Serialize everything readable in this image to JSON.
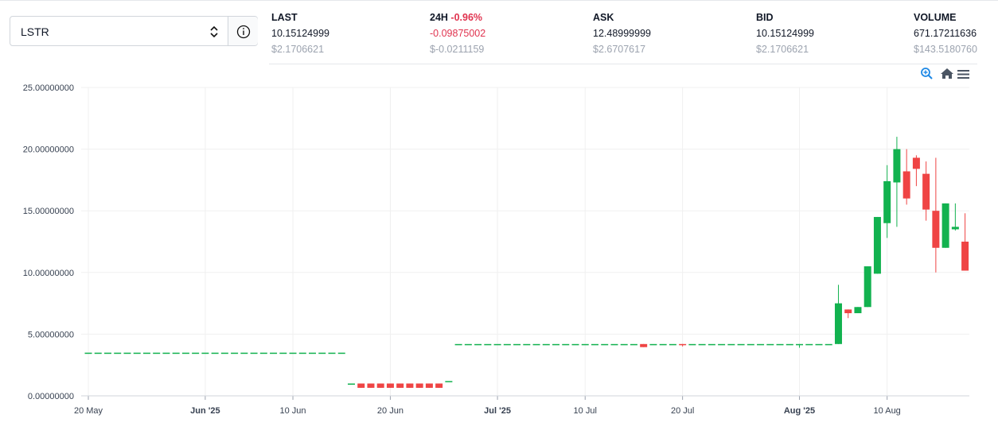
{
  "selector": {
    "value": "LSTR"
  },
  "stats": [
    {
      "label": "LAST",
      "value": "10.15124999",
      "usd": "$2.1706621"
    },
    {
      "label": "24H",
      "change": "-0.96%",
      "value": "-0.09875002",
      "usd": "$-0.0211159"
    },
    {
      "label": "ASK",
      "value": "12.48999999",
      "usd": "$2.6707617"
    },
    {
      "label": "BID",
      "value": "10.15124999",
      "usd": "$2.1706621"
    },
    {
      "label": "VOLUME",
      "value": "671.17211636",
      "usd": "$143.5180760"
    }
  ],
  "chart_data": {
    "type": "candlestick",
    "up_color": "#12b24f",
    "down_color": "#ef4444",
    "grid": true,
    "ylim": [
      0,
      25
    ],
    "yticks": [
      {
        "value": 0,
        "label": "0.00000000"
      },
      {
        "value": 5,
        "label": "5.00000000"
      },
      {
        "value": 10,
        "label": "10.00000000"
      },
      {
        "value": 15,
        "label": "15.00000000"
      },
      {
        "value": 20,
        "label": "20.00000000"
      },
      {
        "value": 25,
        "label": "25.00000000"
      }
    ],
    "xticks": [
      "20 May",
      {
        "value": "1 Jun",
        "label": "Jun '25"
      },
      "10 Jun",
      "20 Jun",
      {
        "value": "1 Jul",
        "label": "Jul '25"
      },
      "10 Jul",
      "20 Jul",
      {
        "value": "1 Aug",
        "label": "Aug '25"
      },
      "10 Aug"
    ],
    "x": [
      "20 May",
      "21 May",
      "22 May",
      "23 May",
      "24 May",
      "25 May",
      "26 May",
      "27 May",
      "28 May",
      "29 May",
      "30 May",
      "31 May",
      "1 Jun",
      "2 Jun",
      "3 Jun",
      "4 Jun",
      "5 Jun",
      "6 Jun",
      "7 Jun",
      "8 Jun",
      "9 Jun",
      "10 Jun",
      "11 Jun",
      "12 Jun",
      "13 Jun",
      "14 Jun",
      "15 Jun",
      "16 Jun",
      "17 Jun",
      "18 Jun",
      "19 Jun",
      "20 Jun",
      "21 Jun",
      "22 Jun",
      "23 Jun",
      "24 Jun",
      "25 Jun",
      "26 Jun",
      "27 Jun",
      "28 Jun",
      "29 Jun",
      "30 Jun",
      "1 Jul",
      "2 Jul",
      "3 Jul",
      "4 Jul",
      "5 Jul",
      "6 Jul",
      "7 Jul",
      "8 Jul",
      "9 Jul",
      "10 Jul",
      "11 Jul",
      "12 Jul",
      "13 Jul",
      "14 Jul",
      "15 Jul",
      "16 Jul",
      "17 Jul",
      "18 Jul",
      "19 Jul",
      "20 Jul",
      "21 Jul",
      "22 Jul",
      "23 Jul",
      "24 Jul",
      "25 Jul",
      "26 Jul",
      "27 Jul",
      "28 Jul",
      "29 Jul",
      "30 Jul",
      "31 Jul",
      "1 Aug",
      "2 Aug",
      "3 Aug",
      "4 Aug",
      "5 Aug",
      "6 Aug",
      "7 Aug",
      "8 Aug",
      "9 Aug",
      "10 Aug",
      "11 Aug",
      "12 Aug",
      "13 Aug",
      "14 Aug",
      "15 Aug",
      "16 Aug",
      "17 Aug",
      "18 Aug"
    ],
    "open": [
      3.5,
      3.5,
      3.5,
      3.5,
      3.5,
      3.5,
      3.5,
      3.5,
      3.5,
      3.5,
      3.5,
      3.5,
      3.5,
      3.5,
      3.5,
      3.5,
      3.5,
      3.5,
      3.5,
      3.5,
      3.5,
      3.5,
      3.5,
      3.5,
      3.5,
      3.5,
      3.5,
      1,
      1,
      1,
      1,
      1,
      1,
      1,
      1,
      1,
      1,
      1.2,
      4.2,
      4.2,
      4.2,
      4.2,
      4.2,
      4.2,
      4.2,
      4.2,
      4.2,
      4.2,
      4.2,
      4.2,
      4.2,
      4.2,
      4.2,
      4.2,
      4.2,
      4.2,
      4.2,
      4.2,
      4.2,
      4.2,
      4.2,
      4.2,
      4.2,
      4.2,
      4.2,
      4.2,
      4.2,
      4.2,
      4.2,
      4.2,
      4.2,
      4.2,
      4.2,
      4.2,
      4.2,
      4.2,
      4.2,
      4.2,
      7.0,
      6.7,
      7.2,
      9.9,
      14.0,
      17.3,
      18.2,
      19.3,
      18.0,
      15.0,
      12.0,
      13.5,
      12.5
    ],
    "high": [
      3.5,
      3.5,
      3.5,
      3.5,
      3.5,
      3.5,
      3.5,
      3.5,
      3.5,
      3.5,
      3.5,
      3.5,
      3.5,
      3.5,
      3.5,
      3.5,
      3.5,
      3.5,
      3.5,
      3.5,
      3.5,
      3.5,
      3.5,
      3.5,
      3.5,
      3.5,
      3.5,
      1,
      1,
      1,
      1,
      1,
      1,
      1,
      1,
      1,
      1,
      1.2,
      4.2,
      4.2,
      4.2,
      4.2,
      4.2,
      4.2,
      4.2,
      4.2,
      4.2,
      4.2,
      4.2,
      4.2,
      4.2,
      4.2,
      4.2,
      4.2,
      4.2,
      4.2,
      4.2,
      4.2,
      4.2,
      4.2,
      4.2,
      4.2,
      4.2,
      4.2,
      4.2,
      4.2,
      4.2,
      4.2,
      4.2,
      4.2,
      4.2,
      4.2,
      4.2,
      4.2,
      4.2,
      4.2,
      4.2,
      9.0,
      7.0,
      7.2,
      10.5,
      14.5,
      18.7,
      21.0,
      20.0,
      19.5,
      19.0,
      19.3,
      15.6,
      15.6,
      14.8
    ],
    "low": [
      3.5,
      3.5,
      3.5,
      3.5,
      3.5,
      3.5,
      3.5,
      3.5,
      3.5,
      3.5,
      3.5,
      3.5,
      3.5,
      3.5,
      3.5,
      3.5,
      3.5,
      3.5,
      3.5,
      3.5,
      3.5,
      3.5,
      3.5,
      3.5,
      3.5,
      3.5,
      3.5,
      1,
      0.65,
      0.65,
      0.65,
      0.65,
      0.65,
      0.65,
      0.65,
      0.65,
      0.65,
      1.2,
      4.2,
      4.2,
      4.2,
      4.2,
      4.2,
      4.2,
      4.2,
      4.2,
      4.2,
      4.2,
      4.2,
      4.2,
      4.2,
      4.2,
      4.2,
      4.2,
      4.2,
      4.2,
      4.2,
      3.95,
      4.2,
      4.2,
      4.2,
      4.0,
      4.2,
      4.2,
      4.2,
      4.2,
      4.2,
      4.2,
      4.2,
      4.2,
      4.2,
      4.2,
      4.2,
      3.9,
      4.2,
      4.2,
      4.2,
      4.2,
      6.3,
      6.7,
      7.2,
      9.9,
      12.8,
      13.7,
      15.5,
      17.0,
      14.2,
      10.0,
      12.0,
      13.4,
      10.15
    ],
    "close": [
      3.5,
      3.5,
      3.5,
      3.5,
      3.5,
      3.5,
      3.5,
      3.5,
      3.5,
      3.5,
      3.5,
      3.5,
      3.5,
      3.5,
      3.5,
      3.5,
      3.5,
      3.5,
      3.5,
      3.5,
      3.5,
      3.5,
      3.5,
      3.5,
      3.5,
      3.5,
      3.5,
      1,
      0.65,
      0.65,
      0.65,
      0.65,
      0.65,
      0.65,
      0.65,
      0.65,
      0.65,
      1.2,
      4.2,
      4.2,
      4.2,
      4.2,
      4.2,
      4.2,
      4.2,
      4.2,
      4.2,
      4.2,
      4.2,
      4.2,
      4.2,
      4.2,
      4.2,
      4.2,
      4.2,
      4.2,
      4.2,
      3.95,
      4.2,
      4.2,
      4.2,
      4.15,
      4.2,
      4.2,
      4.2,
      4.2,
      4.2,
      4.2,
      4.2,
      4.2,
      4.2,
      4.2,
      4.2,
      4.2,
      4.2,
      4.2,
      4.2,
      7.5,
      6.7,
      7.2,
      10.5,
      14.5,
      17.4,
      20.0,
      16.0,
      18.4,
      15.1,
      12.0,
      15.6,
      13.7,
      10.15
    ]
  }
}
